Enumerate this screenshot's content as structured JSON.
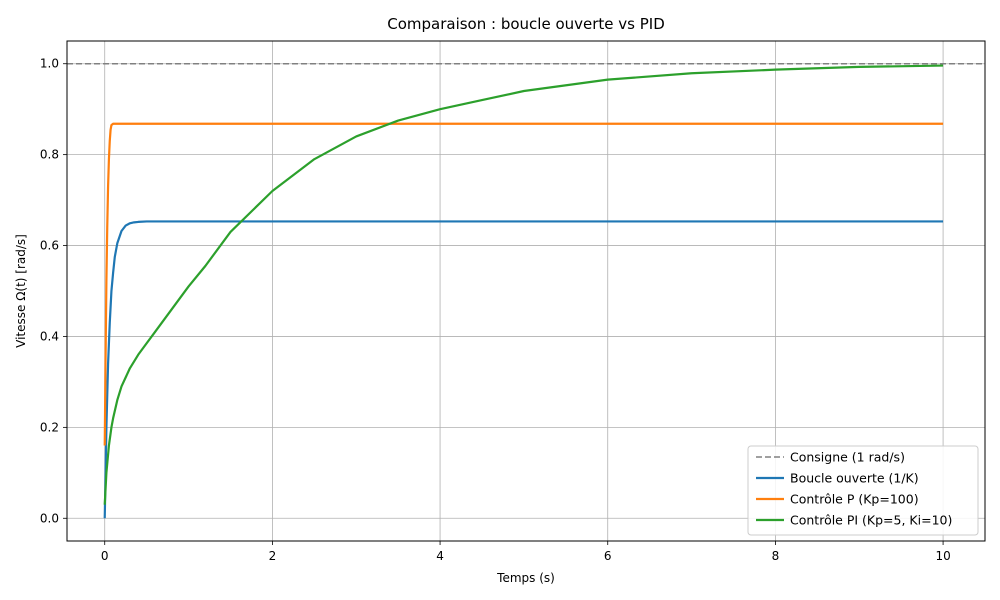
{
  "chart_data": {
    "type": "line",
    "title": "Comparaison : boucle ouverte vs PID",
    "xlabel": "Temps (s)",
    "ylabel": "Vitesse Ω(t) [rad/s]",
    "xlim": [
      -0.45,
      10.5
    ],
    "ylim": [
      -0.05,
      1.05
    ],
    "xticks": [
      0,
      2,
      4,
      6,
      8,
      10
    ],
    "yticks": [
      0.0,
      0.2,
      0.4,
      0.6,
      0.8,
      1.0
    ],
    "xtick_labels": [
      "0",
      "2",
      "4",
      "6",
      "8",
      "10"
    ],
    "ytick_labels": [
      "0.0",
      "0.2",
      "0.4",
      "0.6",
      "0.8",
      "1.0"
    ],
    "grid": true,
    "legend_position": "bottom-right",
    "reference_line": {
      "name": "Consigne (1 rad/s)",
      "y": 1.0,
      "color": "#808080",
      "style": "dashed"
    },
    "series": [
      {
        "name": "Boucle ouverte (1/K)",
        "color": "#1f77b4",
        "x": [
          0,
          0.02,
          0.04,
          0.06,
          0.08,
          0.1,
          0.12,
          0.15,
          0.2,
          0.25,
          0.3,
          0.35,
          0.4,
          0.5,
          0.6,
          0.8,
          1.0,
          2,
          4,
          6,
          8,
          10
        ],
        "y": [
          0.0,
          0.2,
          0.34,
          0.43,
          0.5,
          0.54,
          0.575,
          0.605,
          0.632,
          0.644,
          0.649,
          0.651,
          0.652,
          0.653,
          0.653,
          0.653,
          0.653,
          0.653,
          0.653,
          0.653,
          0.653,
          0.653
        ]
      },
      {
        "name": "Contrôle P (Kp=100)",
        "color": "#ff7f0e",
        "x": [
          0,
          0.01,
          0.02,
          0.03,
          0.04,
          0.05,
          0.06,
          0.07,
          0.08,
          0.1,
          0.15,
          0.2,
          1,
          2,
          4,
          6,
          8,
          10
        ],
        "y": [
          0.16,
          0.35,
          0.52,
          0.64,
          0.73,
          0.79,
          0.83,
          0.855,
          0.865,
          0.868,
          0.868,
          0.868,
          0.868,
          0.868,
          0.868,
          0.868,
          0.868,
          0.868
        ]
      },
      {
        "name": "Contrôle PI (Kp=5, Ki=10)",
        "color": "#2ca02c",
        "x": [
          0,
          0.02,
          0.05,
          0.08,
          0.1,
          0.15,
          0.2,
          0.25,
          0.3,
          0.4,
          0.5,
          0.6,
          0.8,
          1.0,
          1.2,
          1.5,
          2.0,
          2.5,
          3.0,
          3.5,
          4.0,
          4.5,
          5.0,
          6.0,
          7.0,
          8.0,
          9.0,
          10.0
        ],
        "y": [
          0.03,
          0.1,
          0.16,
          0.2,
          0.22,
          0.26,
          0.29,
          0.31,
          0.33,
          0.36,
          0.385,
          0.41,
          0.46,
          0.51,
          0.555,
          0.63,
          0.72,
          0.79,
          0.84,
          0.875,
          0.9,
          0.92,
          0.94,
          0.965,
          0.979,
          0.987,
          0.993,
          0.996
        ]
      }
    ]
  }
}
